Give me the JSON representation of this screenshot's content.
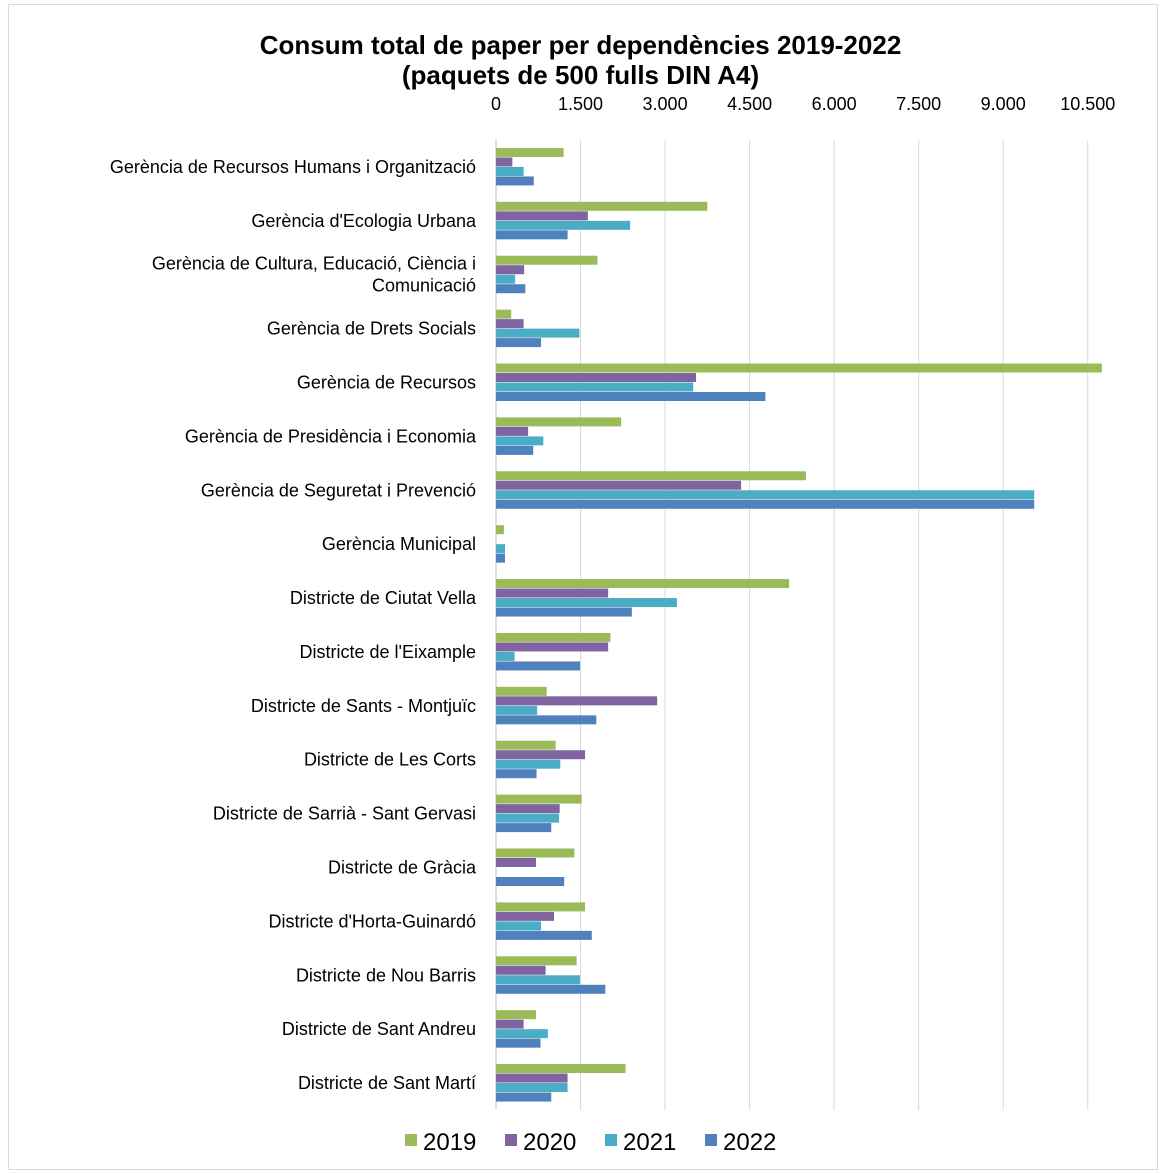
{
  "chart_data": {
    "type": "bar",
    "orientation": "horizontal",
    "title_line1": "Consum total de paper per dependències 2019-2022",
    "title_line2": "(paquets de 500 fulls DIN A4)",
    "x_ticks": [
      "0",
      "1.500",
      "3.000",
      "4.500",
      "6.000",
      "7.500",
      "9.000",
      "10.500"
    ],
    "x_tick_values": [
      0,
      1500,
      3000,
      4500,
      6000,
      7500,
      9000,
      10500
    ],
    "xlim": [
      0,
      11250
    ],
    "x_axis_position": "top",
    "grid": true,
    "legend_position": "bottom",
    "categories": [
      [
        "Gerència de Recursos Humans i Organització"
      ],
      [
        "Gerència d'Ecologia Urbana"
      ],
      [
        "Gerència de Cultura, Educació, Ciència i",
        "Comunicació"
      ],
      [
        "Gerència de Drets Socials"
      ],
      [
        "Gerència de Recursos"
      ],
      [
        "Gerència de Presidència i Economia"
      ],
      [
        "Gerència de Seguretat i Prevenció"
      ],
      [
        "Gerència Municipal"
      ],
      [
        "Districte de Ciutat Vella"
      ],
      [
        "Districte de l'Eixample"
      ],
      [
        "Districte de Sants - Montjuïc"
      ],
      [
        "Districte de Les Corts"
      ],
      [
        "Districte de Sarrià - Sant Gervasi"
      ],
      [
        "Districte de Gràcia"
      ],
      [
        "Districte d'Horta-Guinardó"
      ],
      [
        "Districte de Nou Barris"
      ],
      [
        "Districte de Sant Andreu"
      ],
      [
        "Districte de Sant Martí"
      ]
    ],
    "series": [
      {
        "name": "2019",
        "color": "#9bbb59",
        "values": [
          1200,
          3750,
          1800,
          270,
          10750,
          2220,
          5500,
          140,
          5200,
          2030,
          900,
          1060,
          1520,
          1390,
          1580,
          1430,
          710,
          2300
        ]
      },
      {
        "name": "2020",
        "color": "#8064a2",
        "values": [
          290,
          1630,
          500,
          490,
          3550,
          570,
          4350,
          0,
          1990,
          1990,
          2860,
          1580,
          1130,
          710,
          1030,
          880,
          490,
          1270
        ]
      },
      {
        "name": "2021",
        "color": "#4bacc6",
        "values": [
          490,
          2380,
          340,
          1480,
          3500,
          840,
          9550,
          160,
          3210,
          330,
          730,
          1140,
          1120,
          0,
          800,
          1490,
          920,
          1270
        ]
      },
      {
        "name": "2022",
        "color": "#4f81bd",
        "values": [
          670,
          1270,
          520,
          800,
          4780,
          660,
          9550,
          160,
          2410,
          1490,
          1780,
          720,
          980,
          1210,
          1700,
          1940,
          790,
          980
        ]
      }
    ]
  }
}
